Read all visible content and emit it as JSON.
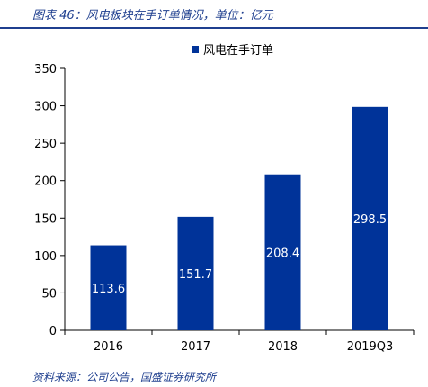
{
  "caption": "图表 46：风电板块在手订单情况，单位：亿元",
  "source": "资料来源：公司公告，国盛证券研究所",
  "colors": {
    "bar": "#003399",
    "accent": "#1f3f8f"
  },
  "chart_data": {
    "type": "bar",
    "categories": [
      "2016",
      "2017",
      "2018",
      "2019Q3"
    ],
    "series": [
      {
        "name": "风电在手订单",
        "values": [
          113.6,
          151.7,
          208.4,
          298.5
        ]
      }
    ],
    "ylim": [
      0,
      350
    ],
    "yticks": [
      0,
      50,
      100,
      150,
      200,
      250,
      300,
      350
    ],
    "grid": false,
    "legend": "top-center"
  }
}
